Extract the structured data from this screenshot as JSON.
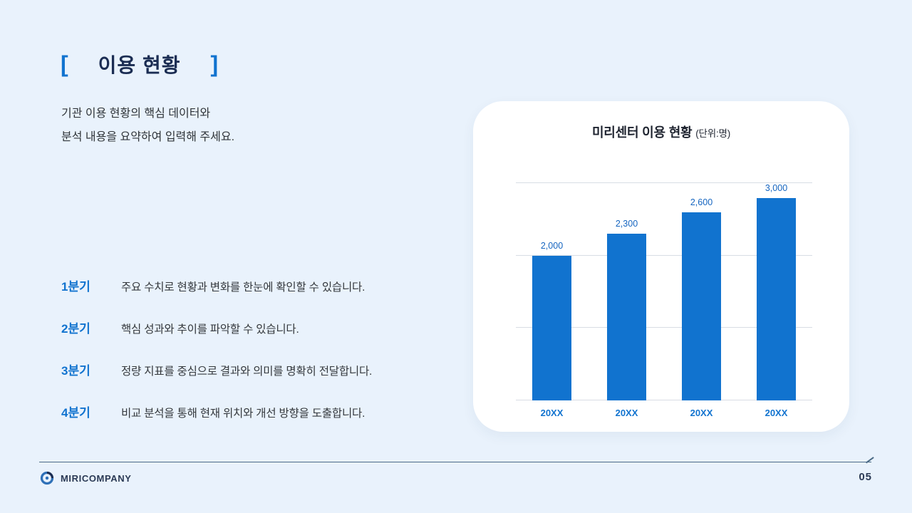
{
  "slide": {
    "bracket_left": "[",
    "bracket_right": "]",
    "title": "이용 현황",
    "description_line1": "기관 이용 현황의 핵심 데이터와",
    "description_line2": "분석 내용을 요약하여 입력해 주세요.",
    "quarters": [
      {
        "label": "1분기",
        "text": "주요 수치로 현황과 변화를 한눈에 확인할 수 있습니다."
      },
      {
        "label": "2분기",
        "text": "핵심 성과와 추이를 파악할 수 있습니다."
      },
      {
        "label": "3분기",
        "text": "정량 지표를 중심으로 결과와 의미를 명확히 전달합니다."
      },
      {
        "label": "4분기",
        "text": "비교 분석을 통해 현재 위치와 개선 방향을 도출합니다."
      }
    ],
    "footer": {
      "company": "MIRICOMPANY",
      "page_number": "05"
    }
  },
  "chart_data": {
    "type": "bar",
    "title": "미리센터 이용 현황",
    "unit_label": "(단위:명)",
    "categories": [
      "20XX",
      "20XX",
      "20XX",
      "20XX"
    ],
    "values": [
      2000,
      2300,
      2600,
      3000
    ],
    "value_labels": [
      "2,000",
      "2,300",
      "2,600",
      "3,000"
    ],
    "ylim": [
      0,
      3000
    ],
    "gridlines": [
      0,
      1000,
      2000,
      3000
    ],
    "grid_on": true,
    "legend": "none",
    "bar_color": "#1173cf",
    "value_label_color": "#1565c0",
    "category_label_color": "#1173cf"
  },
  "colors": {
    "background": "#e9f2fc",
    "accent_blue": "#1173cf",
    "navy_text": "#1b2d53",
    "card_background": "#ffffff",
    "gridline": "#d8dde4",
    "footer_line": "#4a6a85"
  }
}
